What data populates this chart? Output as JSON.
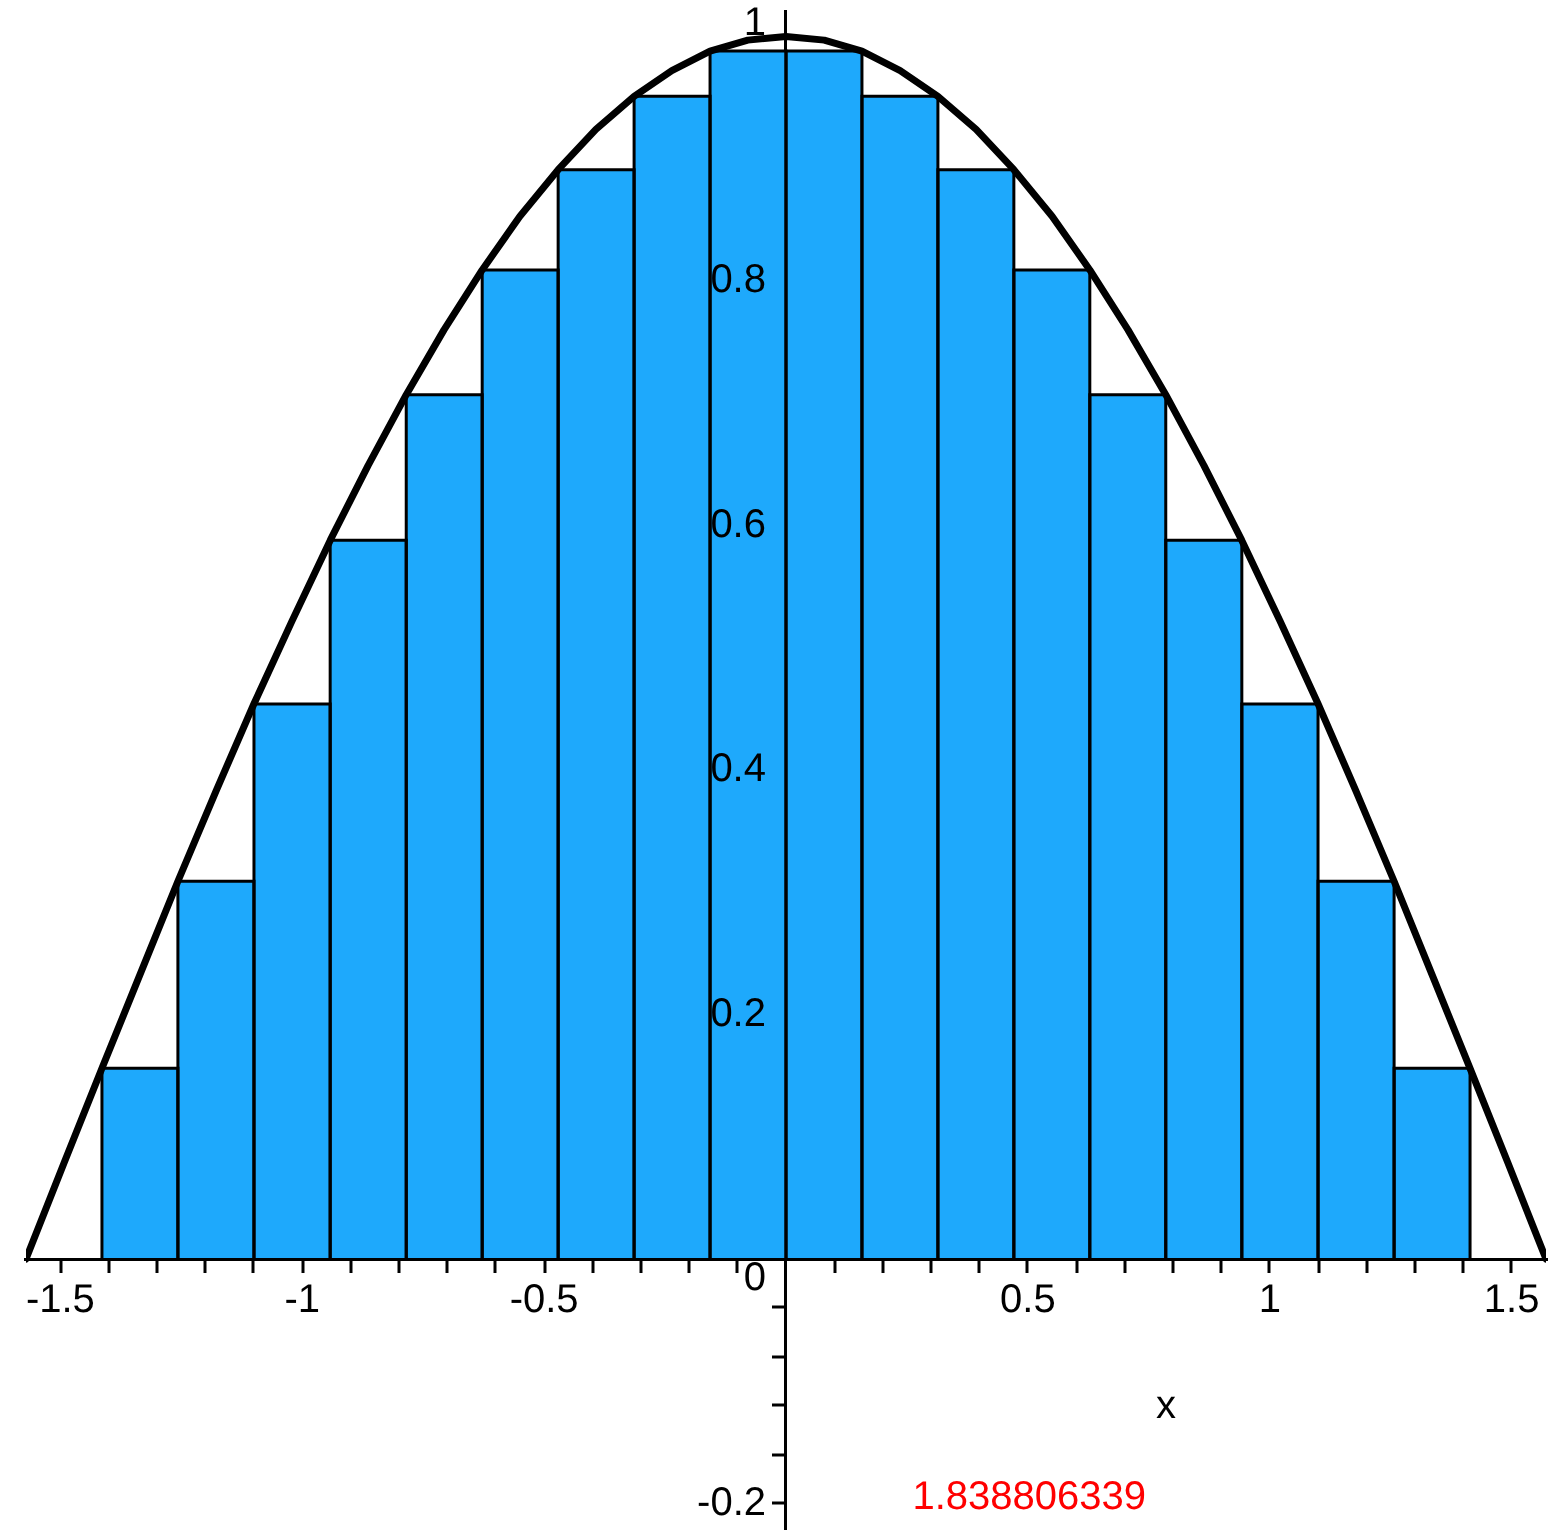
{
  "chart_data": {
    "type": "histogram",
    "xlabel": "x",
    "annotations": [
      "1.838806339"
    ],
    "bins": [
      -1.571,
      -1.414,
      -1.257,
      -1.1,
      -0.942,
      -0.785,
      -0.628,
      -0.471,
      -0.314,
      -0.157,
      0,
      0.157,
      0.314,
      0.471,
      0.628,
      0.785,
      0.942,
      1.1,
      1.257,
      1.414,
      1.571
    ],
    "series": [
      {
        "color": "#1ea9fc",
        "values": [
          0,
          0.156,
          0.309,
          0.454,
          0.588,
          0.707,
          0.809,
          0.891,
          0.951,
          0.988,
          0.988,
          0.951,
          0.891,
          0.809,
          0.707,
          0.588,
          0.454,
          0.309,
          0.156,
          0
        ]
      },
      {
        "type": "line",
        "color": "#000000",
        "x": [
          -1.571,
          -1.492,
          -1.414,
          -1.335,
          -1.257,
          -1.178,
          -1.1,
          -1.021,
          -0.942,
          -0.864,
          -0.785,
          -0.707,
          -0.628,
          -0.55,
          -0.471,
          -0.393,
          -0.314,
          -0.236,
          -0.157,
          -0.079,
          0,
          0.079,
          0.157,
          0.236,
          0.314,
          0.393,
          0.471,
          0.55,
          0.628,
          0.707,
          0.785,
          0.864,
          0.942,
          1.021,
          1.1,
          1.178,
          1.257,
          1.335,
          1.414,
          1.492,
          1.571
        ],
        "values": [
          0,
          0.079,
          0.156,
          0.233,
          0.309,
          0.383,
          0.454,
          0.522,
          0.588,
          0.649,
          0.707,
          0.76,
          0.809,
          0.853,
          0.891,
          0.924,
          0.951,
          0.972,
          0.988,
          0.997,
          1,
          0.997,
          0.988,
          0.972,
          0.951,
          0.924,
          0.891,
          0.853,
          0.809,
          0.76,
          0.707,
          0.649,
          0.588,
          0.522,
          0.454,
          0.383,
          0.309,
          0.233,
          0.156,
          0.079,
          0
        ]
      }
    ],
    "xlim": [
      -1.571,
      1.571
    ],
    "ylim": [
      -0.22,
      1.02
    ],
    "xticks": [
      -1.5,
      {
        "value": -1.4,
        "label": null
      },
      {
        "value": -1.3,
        "label": null
      },
      {
        "value": -1.2,
        "label": null
      },
      {
        "value": -1.1,
        "label": null
      },
      -1,
      {
        "value": -0.9,
        "label": null
      },
      {
        "value": -0.8,
        "label": null
      },
      {
        "value": -0.7,
        "label": null
      },
      {
        "value": -0.6,
        "label": null
      },
      -0.5,
      {
        "value": -0.4,
        "label": null
      },
      {
        "value": -0.3,
        "label": null
      },
      {
        "value": -0.2,
        "label": null
      },
      {
        "value": -0.1,
        "label": null
      },
      {
        "value": 0.1,
        "label": null
      },
      {
        "value": 0.2,
        "label": null
      },
      {
        "value": 0.3,
        "label": null
      },
      {
        "value": 0.4,
        "label": null
      },
      0.5,
      {
        "value": 0.6,
        "label": null
      },
      {
        "value": 0.7,
        "label": null
      },
      {
        "value": 0.8,
        "label": null
      },
      {
        "value": 0.9,
        "label": null
      },
      1,
      {
        "value": 1.1,
        "label": null
      },
      {
        "value": 1.2,
        "label": null
      },
      {
        "value": 1.3,
        "label": null
      },
      {
        "value": 1.4,
        "label": null
      },
      1.5
    ],
    "yticks": [
      -0.2,
      {
        "value": -0.16,
        "label": null
      },
      {
        "value": -0.12,
        "label": null
      },
      {
        "value": -0.08,
        "label": null
      },
      {
        "value": -0.04,
        "label": null
      },
      0,
      {
        "value": 0.04,
        "label": null
      },
      {
        "value": 0.08,
        "label": null
      },
      {
        "value": 0.12,
        "label": null
      },
      {
        "value": 0.16,
        "label": null
      },
      0.2,
      {
        "value": 0.24,
        "label": null
      },
      {
        "value": 0.28,
        "label": null
      },
      {
        "value": 0.32,
        "label": null
      },
      {
        "value": 0.36,
        "label": null
      },
      0.4,
      {
        "value": 0.44,
        "label": null
      },
      {
        "value": 0.48,
        "label": null
      },
      {
        "value": 0.52,
        "label": null
      },
      {
        "value": 0.56,
        "label": null
      },
      0.6,
      {
        "value": 0.64,
        "label": null
      },
      {
        "value": 0.68,
        "label": null
      },
      {
        "value": 0.72,
        "label": null
      },
      {
        "value": 0.76,
        "label": null
      },
      0.8,
      {
        "value": 0.84,
        "label": null
      },
      {
        "value": 0.88,
        "label": null
      },
      {
        "value": 0.92,
        "label": null
      },
      {
        "value": 0.96,
        "label": null
      },
      1
    ],
    "marker": "none"
  }
}
